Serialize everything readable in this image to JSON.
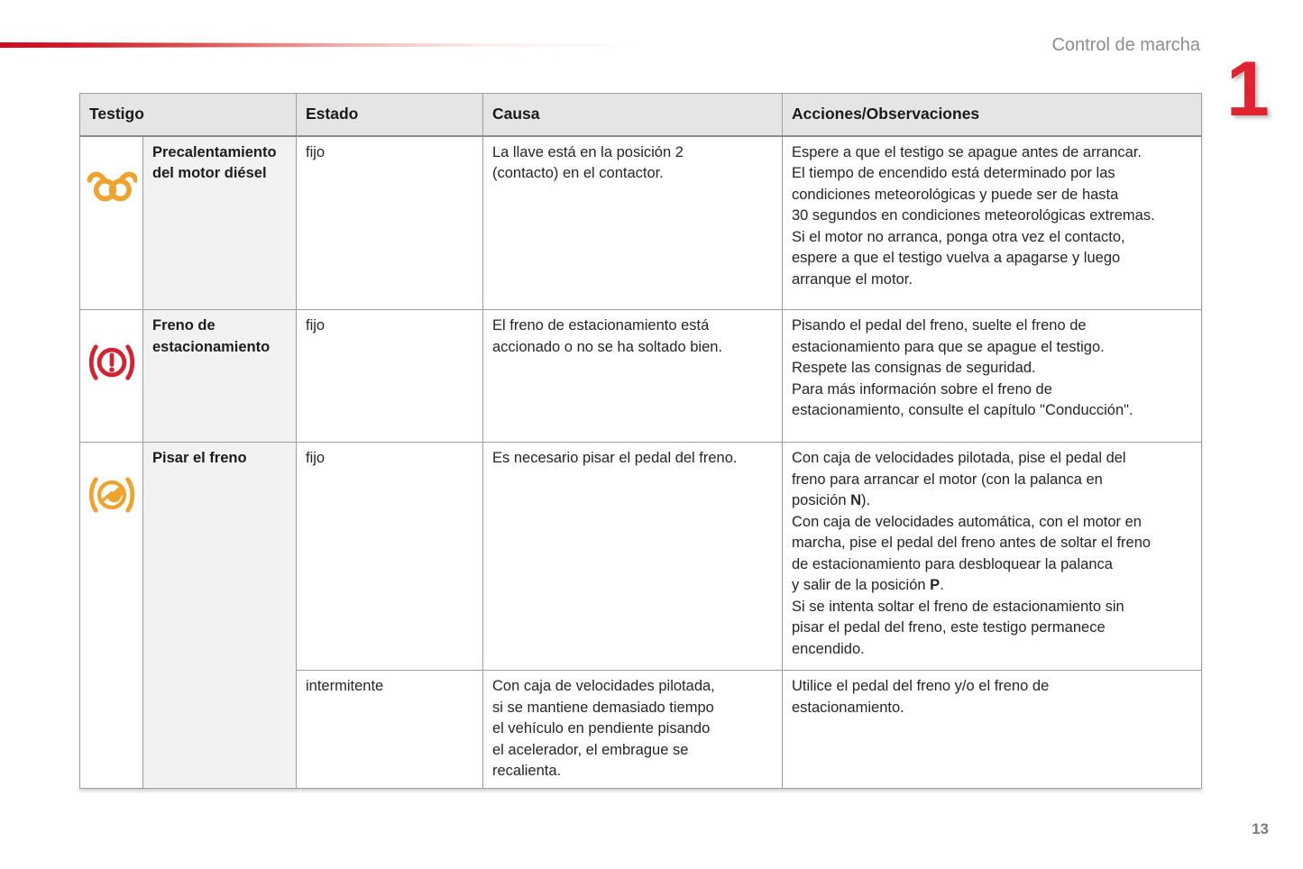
{
  "page": {
    "header_title": "Control de marcha",
    "chapter_number": "1",
    "page_number": "13"
  },
  "colors": {
    "accent_red": "#d11527",
    "chapter_red": "#e02231",
    "icon_amber": "#efa32d",
    "icon_red": "#d32330",
    "header_bg": "#e5e5e3",
    "name_col_bg": "#f2f2f0"
  },
  "table": {
    "headers": {
      "testigo": "Testigo",
      "estado": "Estado",
      "causa": "Causa",
      "acciones": "Acciones/Observaciones"
    },
    "rows": [
      {
        "icon": "glow-plug",
        "name": "Precalentamiento\ndel motor diésel",
        "states": [
          {
            "estado": "fijo",
            "causa": "La llave está en la posición 2\n(contacto) en el contactor.",
            "acciones": "Espere a que el testigo se apague antes de arrancar.\nEl tiempo de encendido está determinado por las\ncondiciones meteorológicas y puede ser de hasta\n30 segundos en condiciones meteorológicas extremas.\nSi el motor no arranca, ponga otra vez el contacto,\nespere a que el testigo vuelva a apagarse y luego\narranque el motor."
          }
        ]
      },
      {
        "icon": "parking-brake",
        "name": "Freno de\nestacionamiento",
        "states": [
          {
            "estado": "fijo",
            "causa": "El freno de estacionamiento está\naccionado o no se ha soltado bien.",
            "acciones": "Pisando el pedal del freno, suelte el freno de\nestacionamiento para que se apague el testigo.\nRespete las consignas de seguridad.\nPara más información sobre el freno de\nestacionamiento, consulte el capítulo \"Conducción\"."
          }
        ]
      },
      {
        "icon": "brake-pedal",
        "name": "Pisar el freno",
        "states": [
          {
            "estado": "fijo",
            "causa": "Es necesario pisar el pedal del freno.",
            "acciones": "Con caja de velocidades pilotada, pise el pedal del\nfreno para arrancar el motor (con la palanca en\nposición **N**).\nCon caja de velocidades automática, con el motor en\nmarcha, pise el pedal del freno antes de soltar el freno\nde estacionamiento para desbloquear la palanca\ny salir de la posición **P**.\nSi se intenta soltar el freno de estacionamiento sin\npisar el pedal del freno, este testigo permanece\nencendido."
          },
          {
            "estado": "intermitente",
            "causa": "Con caja de velocidades pilotada,\nsi se mantiene demasiado tiempo\nel vehículo en pendiente pisando\nel acelerador, el embrague se\nrecalienta.",
            "acciones": "Utilice el pedal del freno y/o el freno de\nestacionamiento."
          }
        ]
      }
    ]
  }
}
